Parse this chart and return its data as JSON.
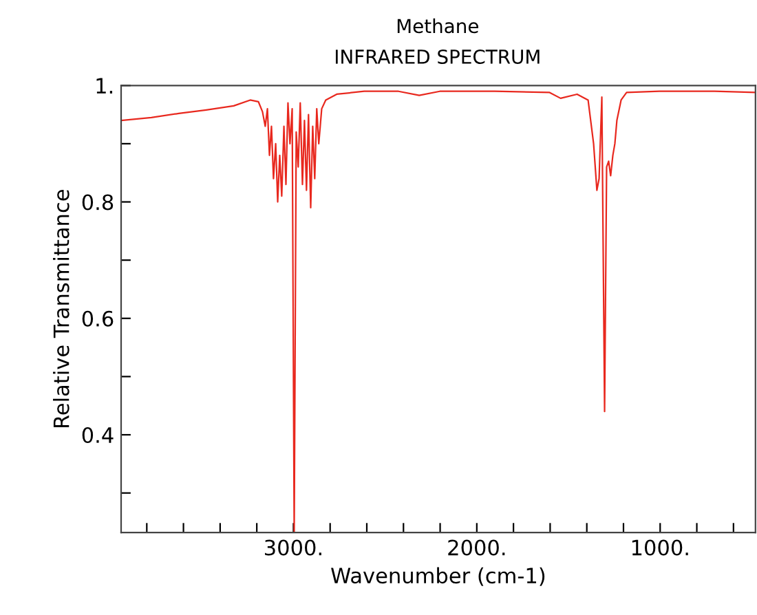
{
  "chart_data": {
    "type": "line",
    "title": "Methane",
    "subtitle": "INFRARED SPECTRUM",
    "xlabel": "Wavenumber (cm-1)",
    "ylabel": "Relative Transmittance",
    "xlim": [
      3940,
      480
    ],
    "ylim": [
      0.232,
      1.0
    ],
    "xticks": [
      {
        "value": 3800,
        "label": null
      },
      {
        "value": 3600,
        "label": null
      },
      {
        "value": 3400,
        "label": null
      },
      {
        "value": 3200,
        "label": null
      },
      {
        "value": 3000,
        "label": "3000."
      },
      {
        "value": 2800,
        "label": null
      },
      {
        "value": 2600,
        "label": null
      },
      {
        "value": 2400,
        "label": null
      },
      {
        "value": 2200,
        "label": null
      },
      {
        "value": 2000,
        "label": "2000."
      },
      {
        "value": 1800,
        "label": null
      },
      {
        "value": 1600,
        "label": null
      },
      {
        "value": 1400,
        "label": null
      },
      {
        "value": 1200,
        "label": null
      },
      {
        "value": 1000,
        "label": "1000."
      },
      {
        "value": 800,
        "label": null
      },
      {
        "value": 600,
        "label": null
      }
    ],
    "yticks": [
      {
        "value": 0.3,
        "label": null
      },
      {
        "value": 0.4,
        "label": "0.4"
      },
      {
        "value": 0.5,
        "label": null
      },
      {
        "value": 0.6,
        "label": "0.6"
      },
      {
        "value": 0.7,
        "label": null
      },
      {
        "value": 0.8,
        "label": "0.8"
      },
      {
        "value": 0.9,
        "label": null
      },
      {
        "value": 1.0,
        "label": "1."
      }
    ],
    "grid": false,
    "marker": "none",
    "line_style": "solid",
    "series": [
      {
        "color": "#e8281e",
        "x": [
          3940,
          3775,
          3625,
          3476,
          3326,
          3236,
          3191,
          3169,
          3154,
          3142,
          3131,
          3120,
          3109,
          3097,
          3086,
          3075,
          3064,
          3052,
          3041,
          3030,
          3019,
          3007,
          2996,
          2985,
          2974,
          2963,
          2951,
          2940,
          2929,
          2918,
          2906,
          2895,
          2884,
          2873,
          2862,
          2846,
          2824,
          2764,
          2614,
          2427,
          2314,
          2202,
          1903,
          1603,
          1543,
          1453,
          1393,
          1363,
          1345,
          1333,
          1318,
          1303,
          1292,
          1281,
          1270,
          1258,
          1247,
          1236,
          1213,
          1183,
          1004,
          704,
          480
        ],
        "values": [
          0.94,
          0.945,
          0.952,
          0.958,
          0.965,
          0.975,
          0.972,
          0.955,
          0.93,
          0.96,
          0.88,
          0.93,
          0.84,
          0.9,
          0.8,
          0.88,
          0.81,
          0.93,
          0.83,
          0.97,
          0.9,
          0.96,
          0.232,
          0.92,
          0.86,
          0.97,
          0.83,
          0.94,
          0.82,
          0.95,
          0.79,
          0.93,
          0.84,
          0.96,
          0.9,
          0.96,
          0.975,
          0.985,
          0.99,
          0.99,
          0.983,
          0.99,
          0.99,
          0.988,
          0.978,
          0.985,
          0.975,
          0.9,
          0.82,
          0.84,
          0.98,
          0.44,
          0.86,
          0.87,
          0.845,
          0.88,
          0.9,
          0.94,
          0.975,
          0.988,
          0.99,
          0.99,
          0.988
        ]
      }
    ]
  }
}
